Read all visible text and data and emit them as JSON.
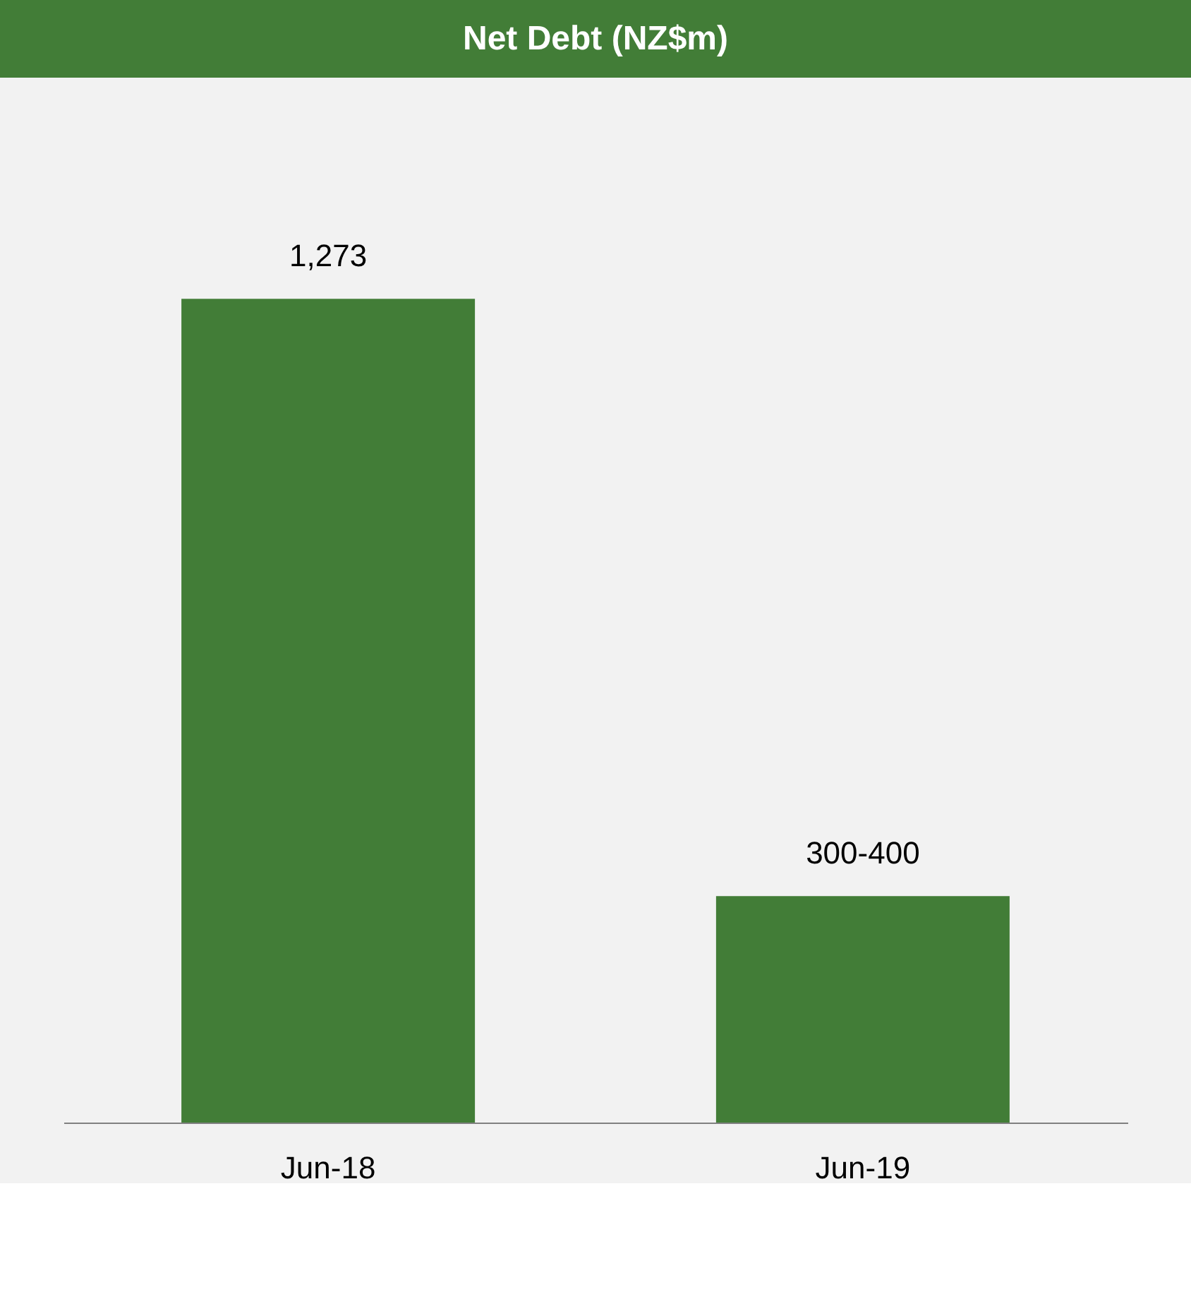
{
  "chart_data": {
    "type": "bar",
    "title": "Net Debt (NZ$m)",
    "categories": [
      "Jun-18",
      "Jun-19"
    ],
    "values": [
      1273,
      350
    ],
    "value_labels": [
      "1,273",
      "300-400"
    ],
    "color": "#427d37"
  }
}
